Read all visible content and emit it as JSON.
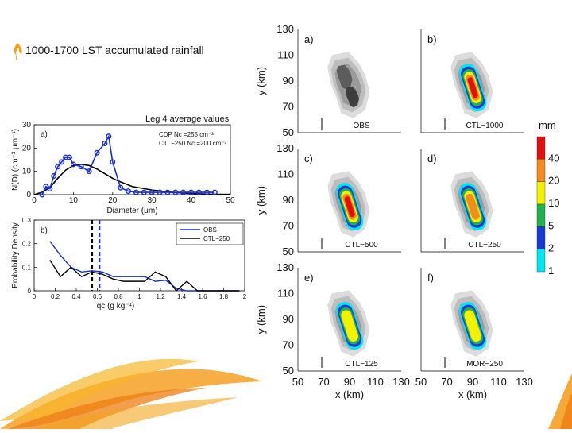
{
  "slide": {
    "title": "1000-1700 LST accumulated rainfall",
    "subtitle": "Leg 4 average values"
  },
  "colors": {
    "accent": "#f5b21c",
    "obs": "#1a2fd0",
    "model": "#000000",
    "flame": "#f08020"
  },
  "chart_data": [
    {
      "type": "line",
      "id": "size-distribution",
      "panel_label": "a)",
      "xlabel": "Diameter (μm)",
      "ylabel": "N(D) (cm⁻³ μm⁻¹)",
      "xlim": [
        0,
        50
      ],
      "ylim": [
        0,
        30
      ],
      "xticks": [
        "0",
        "10",
        "20",
        "30",
        "40",
        "50"
      ],
      "yticks": [
        "0",
        "10",
        "20",
        "30"
      ],
      "legend": [
        "CDP Nᴄ =255 cm⁻³",
        "CTL−250 Nᴄ =200 cm⁻³"
      ],
      "series": [
        {
          "name": "CDP",
          "x": [
            2,
            3,
            4,
            5,
            6,
            7,
            8,
            9,
            10,
            12,
            14,
            16,
            18,
            19,
            20,
            22,
            24,
            26,
            28,
            30,
            32,
            34,
            36,
            38,
            40,
            42,
            44,
            46
          ],
          "values": [
            0,
            3.5,
            2.5,
            8,
            12,
            14,
            16,
            16,
            13,
            12,
            10,
            18,
            22,
            25,
            14,
            3,
            1.5,
            1,
            1,
            1,
            1,
            1,
            1,
            1,
            1,
            1,
            1,
            1
          ]
        },
        {
          "name": "CTL-250",
          "x": [
            0,
            2,
            4,
            6,
            8,
            10,
            12,
            14,
            16,
            18,
            20,
            22,
            25,
            30,
            35,
            40,
            45,
            50
          ],
          "values": [
            0,
            1,
            3,
            7,
            10.5,
            12.5,
            13,
            12.5,
            11,
            9,
            7,
            5.5,
            3.5,
            2,
            1,
            0.5,
            0.2,
            0.1
          ]
        }
      ]
    },
    {
      "type": "line",
      "id": "qc-pdf",
      "panel_label": "b)",
      "xlabel": "qᴄ (g kg⁻¹)",
      "ylabel": "Probability Density",
      "xlim": [
        0,
        2
      ],
      "ylim": [
        0,
        0.3
      ],
      "xticks": [
        "0",
        "0.2",
        "0.4",
        "0.6",
        "0.8",
        "1",
        "1.2",
        "1.4",
        "1.6",
        "1.8",
        "2"
      ],
      "yticks": [
        "0",
        "0.1",
        "0.2",
        "0.3"
      ],
      "legend": [
        "OBS",
        "CTL−250"
      ],
      "mean_lines": [
        {
          "series": "CTL-250",
          "x": 0.55
        },
        {
          "series": "OBS",
          "x": 0.62
        }
      ],
      "series": [
        {
          "name": "OBS",
          "x": [
            0.15,
            0.25,
            0.35,
            0.45,
            0.55,
            0.65,
            0.75,
            0.85,
            0.95,
            1.05,
            1.15,
            1.25,
            1.35,
            1.45,
            1.55,
            1.65,
            1.75,
            1.85,
            1.95
          ],
          "values": [
            0.21,
            0.15,
            0.1,
            0.08,
            0.085,
            0.08,
            0.06,
            0.06,
            0.06,
            0.06,
            0.04,
            0.045,
            0.01,
            0.0,
            0.0,
            0.0,
            0.0,
            0.0,
            0.0
          ]
        },
        {
          "name": "CTL-250",
          "x": [
            0.15,
            0.25,
            0.35,
            0.45,
            0.55,
            0.65,
            0.75,
            0.85,
            0.95,
            1.05,
            1.15,
            1.25,
            1.35,
            1.45,
            1.55,
            1.65,
            1.75,
            1.85,
            1.95
          ],
          "values": [
            0.13,
            0.06,
            0.1,
            0.06,
            0.08,
            0.07,
            0.05,
            0.04,
            0.04,
            0.04,
            0.08,
            0.06,
            0.0,
            0.04,
            0.0,
            0.0,
            0.0,
            0.0,
            0.0
          ]
        }
      ]
    },
    {
      "type": "heatmap",
      "id": "rainfall-maps",
      "xlabel": "x (km)",
      "ylabel": "y (km)",
      "xlim": [
        50,
        130
      ],
      "ylim": [
        50,
        130
      ],
      "xticks": [
        "50",
        "70",
        "90",
        "110",
        "130"
      ],
      "yticks": [
        "50",
        "70",
        "90",
        "110",
        "130"
      ],
      "colorbar_unit": "mm",
      "colorbar_levels": [
        "1",
        "2",
        "5",
        "10",
        "20",
        "40"
      ],
      "colorbar_colors": [
        "#00e5f0",
        "#1a3ad8",
        "#22b14c",
        "#f2f200",
        "#f58a20",
        "#e01010"
      ],
      "panels": [
        {
          "label": "a)",
          "name": "OBS",
          "intensity": 0
        },
        {
          "label": "b)",
          "name": "CTL−1000",
          "intensity": 3
        },
        {
          "label": "c)",
          "name": "CTL−500",
          "intensity": 3
        },
        {
          "label": "d)",
          "name": "CTL−250",
          "intensity": 2
        },
        {
          "label": "e)",
          "name": "CTL−125",
          "intensity": 1
        },
        {
          "label": "f)",
          "name": "MOR−250",
          "intensity": 1
        }
      ]
    }
  ]
}
